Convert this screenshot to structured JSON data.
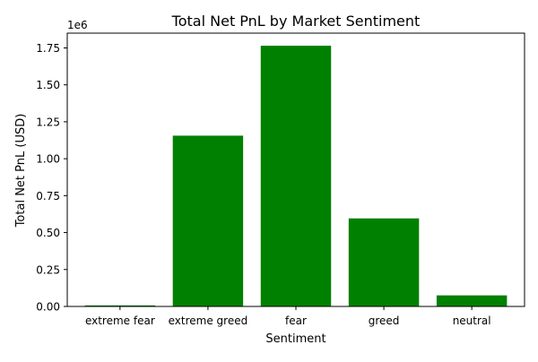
{
  "chart_data": {
    "type": "bar",
    "title": "Total Net PnL by Market Sentiment",
    "xlabel": "Sentiment",
    "ylabel": "Total Net PnL (USD)",
    "offset_text": "1e6",
    "categories": [
      "extreme fear",
      "extreme greed",
      "fear",
      "greed",
      "neutral"
    ],
    "values": [
      7000,
      1156000,
      1765000,
      596000,
      75000
    ],
    "ylim": [
      0,
      1850000
    ],
    "yticks": [
      0,
      250000,
      500000,
      750000,
      1000000,
      1250000,
      1500000,
      1750000
    ],
    "ytick_labels": [
      "0.00",
      "0.25",
      "0.50",
      "0.75",
      "1.00",
      "1.25",
      "1.50",
      "1.75"
    ],
    "grid": false,
    "legend": "none",
    "bar_color": "#008000"
  }
}
